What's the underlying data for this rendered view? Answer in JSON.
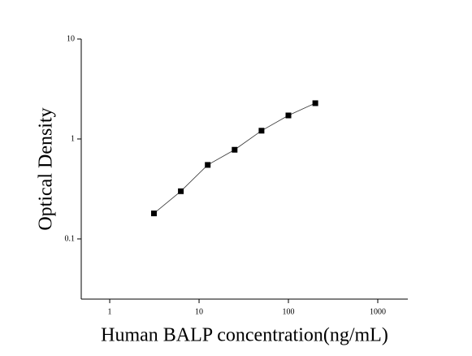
{
  "chart_data": {
    "type": "scatter",
    "x_label": "Human BALP concentration(ng/mL)",
    "y_label": "Optical Density",
    "x": [
      3.125,
      6.25,
      12.5,
      25,
      50,
      100,
      200
    ],
    "values": [
      0.18,
      0.3,
      0.55,
      0.78,
      1.21,
      1.72,
      2.28
    ],
    "color": "#000000",
    "xlog": true,
    "ylog": true,
    "xlim": [
      0.48,
      2170
    ],
    "ylim": [
      0.025,
      10
    ],
    "xticks": [
      1,
      10,
      100,
      1000
    ],
    "yticks": [
      0.1,
      1,
      10
    ],
    "fit_line": true
  }
}
